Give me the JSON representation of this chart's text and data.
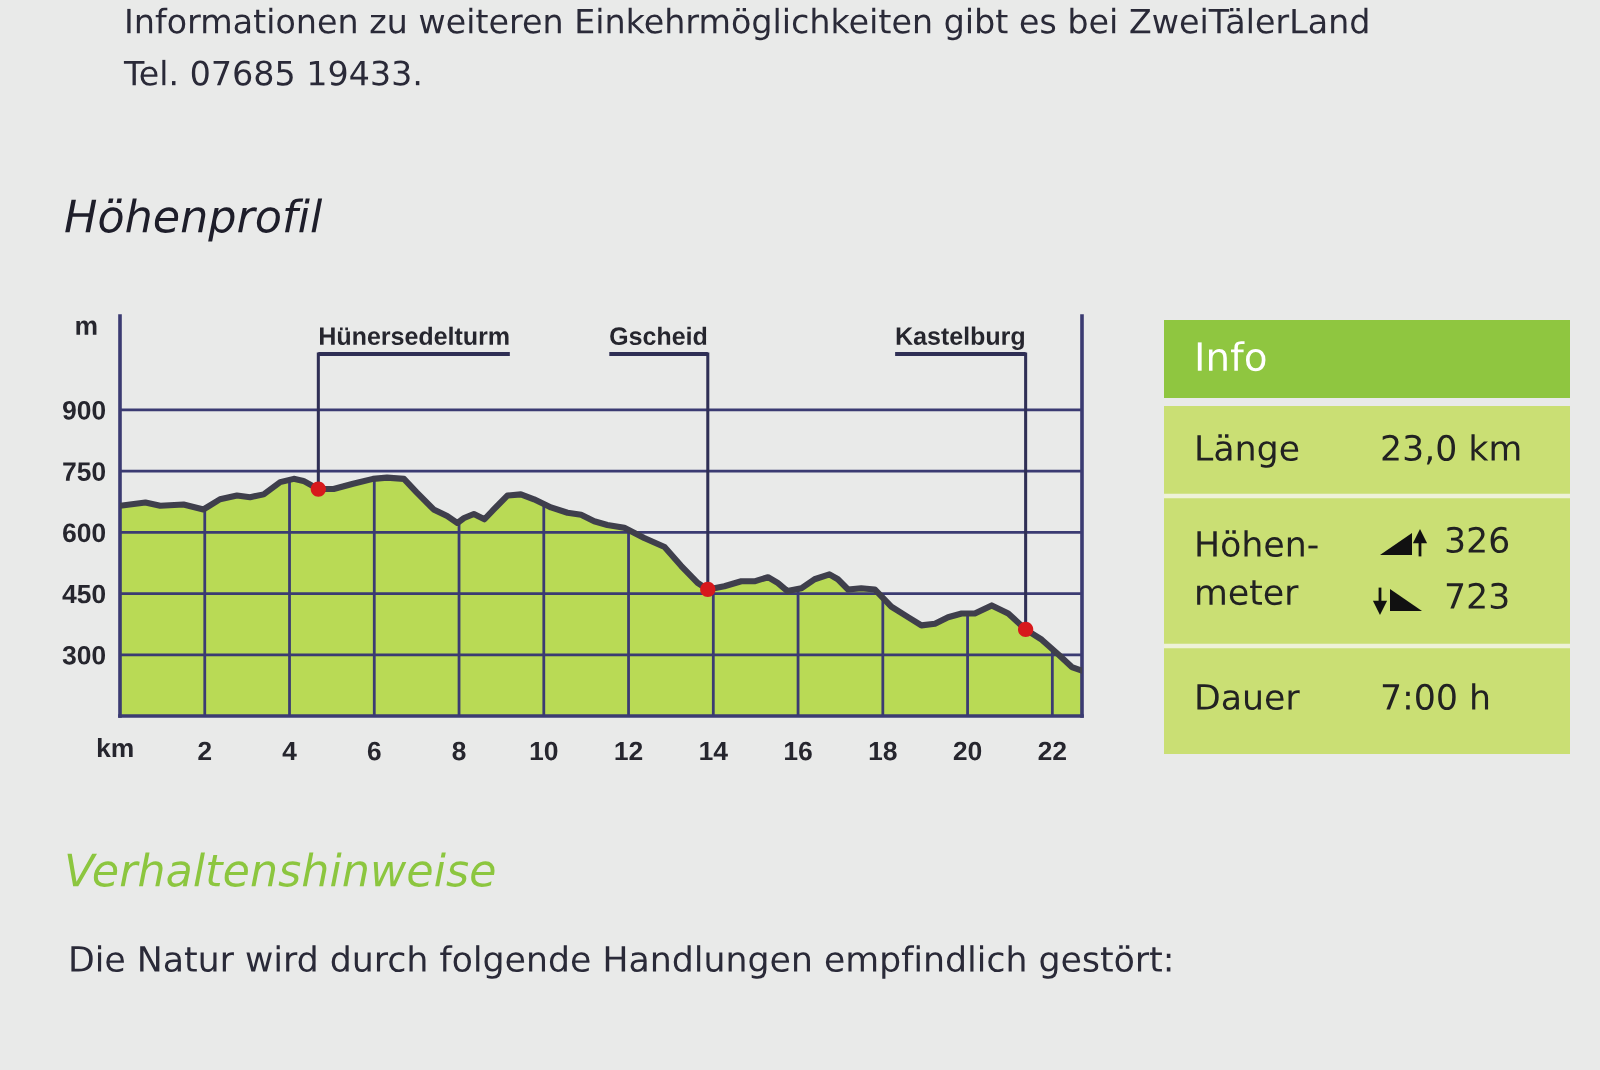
{
  "chart_data": [
    {
      "type": "area",
      "title": "Höhenprofil",
      "xlabel": "km",
      "ylabel": "m",
      "x": [
        0,
        0.6,
        0.95,
        1.5,
        1.97,
        2.36,
        2.76,
        3.07,
        3.39,
        3.78,
        4.1,
        4.33,
        4.68,
        5.04,
        5.5,
        5.97,
        6.3,
        6.7,
        7.0,
        7.4,
        7.72,
        7.96,
        8.12,
        8.35,
        8.6,
        8.82,
        9.14,
        9.46,
        9.77,
        10.17,
        10.56,
        10.88,
        11.19,
        11.5,
        11.9,
        12.37,
        12.85,
        13.24,
        13.63,
        13.87,
        14.26,
        14.66,
        14.97,
        15.29,
        15.52,
        15.75,
        16.08,
        16.39,
        16.74,
        16.94,
        17.18,
        17.49,
        17.81,
        18.2,
        18.6,
        18.91,
        19.23,
        19.54,
        19.86,
        20.17,
        20.57,
        20.96,
        21.37,
        21.75,
        22.15,
        22.46,
        22.7
      ],
      "series": [
        {
          "color": "#b9da55",
          "values": [
            665,
            673,
            665,
            668,
            656,
            681,
            690,
            686,
            693,
            723,
            731,
            726,
            706,
            706,
            719,
            731,
            734,
            731,
            698,
            656,
            640,
            623,
            635,
            645,
            632,
            656,
            690,
            693,
            681,
            661,
            648,
            643,
            627,
            618,
            611,
            586,
            564,
            518,
            476,
            460,
            468,
            480,
            480,
            490,
            476,
            456,
            463,
            485,
            497,
            485,
            460,
            463,
            460,
            418,
            392,
            372,
            376,
            392,
            401,
            401,
            421,
            401,
            362,
            337,
            300,
            270,
            261
          ]
        }
      ],
      "xlim": [
        0,
        22.7
      ],
      "ylim": [
        150,
        1130
      ],
      "xticks": [
        2,
        4,
        6,
        8,
        10,
        12,
        14,
        16,
        18,
        20,
        22
      ],
      "yticks": [
        300,
        450,
        600,
        750,
        900
      ],
      "grid": true,
      "annotations": [
        {
          "text": "Hünersedelturm",
          "x": 4.68,
          "y": 706
        },
        {
          "text": "Gscheid",
          "x": 13.87,
          "y": 460
        },
        {
          "text": "Kastelburg",
          "x": 21.37,
          "y": 362
        },
        "Informationen zu weiteren Einkehrmöglichkeiten gibt es bei ZweiTälerLand",
        "Tel. 07685 19433."
      ]
    },
    {
      "type": "other",
      "title": "Info",
      "annotations": [
        "Länge",
        "23,0 km",
        "Höhen-\nmeter",
        "326",
        "723",
        "Dauer",
        "7:00 h"
      ]
    },
    {
      "type": "other",
      "title": "Verhaltenshinweise",
      "annotations": [
        "Die Natur wird durch folgende Handlungen empfindlich gestört:"
      ]
    }
  ]
}
